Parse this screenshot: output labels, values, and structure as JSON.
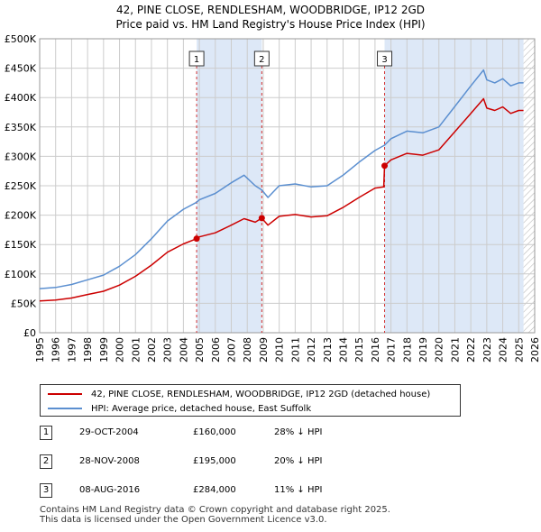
{
  "title_line1": "42, PINE CLOSE, RENDLESHAM, WOODBRIDGE, IP12 2GD",
  "title_line2": "Price paid vs. HM Land Registry's House Price Index (HPI)",
  "colors": {
    "property": "#cc0000",
    "hpi": "#5b8fd0",
    "shade": "#dde8f7",
    "grid": "#cccccc"
  },
  "legend": {
    "property_label": "42, PINE CLOSE, RENDLESHAM, WOODBRIDGE, IP12 2GD (detached house)",
    "hpi_label": "HPI: Average price, detached house, East Suffolk"
  },
  "sales": [
    {
      "num": "1",
      "date": "29-OCT-2004",
      "price": "£160,000",
      "hpi_diff": "28% ↓ HPI"
    },
    {
      "num": "2",
      "date": "28-NOV-2008",
      "price": "£195,000",
      "hpi_diff": "20% ↓ HPI"
    },
    {
      "num": "3",
      "date": "08-AUG-2016",
      "price": "£284,000",
      "hpi_diff": "11% ↓ HPI"
    }
  ],
  "footer_line1": "Contains HM Land Registry data © Crown copyright and database right 2025.",
  "footer_line2": "This data is licensed under the Open Government Licence v3.0.",
  "chart_data": {
    "type": "line",
    "title": "42, PINE CLOSE, RENDLESHAM, WOODBRIDGE, IP12 2GD — Price paid vs. HM Land Registry's House Price Index (HPI)",
    "xlim": [
      1995,
      2026
    ],
    "ylim": [
      0,
      500000
    ],
    "yticks": [
      0,
      50000,
      100000,
      150000,
      200000,
      250000,
      300000,
      350000,
      400000,
      450000,
      500000
    ],
    "ytick_labels": [
      "£0",
      "£50K",
      "£100K",
      "£150K",
      "£200K",
      "£250K",
      "£300K",
      "£350K",
      "£400K",
      "£450K",
      "£500K"
    ],
    "xticks": [
      1995,
      1996,
      1997,
      1998,
      1999,
      2000,
      2001,
      2002,
      2003,
      2004,
      2005,
      2006,
      2007,
      2008,
      2009,
      2010,
      2011,
      2012,
      2013,
      2014,
      2015,
      2016,
      2017,
      2018,
      2019,
      2020,
      2021,
      2022,
      2023,
      2024,
      2025,
      2026
    ],
    "grid": true,
    "sale_markers": [
      {
        "label": "1",
        "x": 2004.83,
        "y": 160000
      },
      {
        "label": "2",
        "x": 2008.91,
        "y": 195000
      },
      {
        "label": "3",
        "x": 2016.6,
        "y": 284000
      }
    ],
    "shaded_ranges": [
      [
        2004.83,
        2008.91
      ],
      [
        2016.6,
        2025.3
      ]
    ],
    "hatched_from": 2025.3,
    "series": [
      {
        "name": "HPI: Average price, detached house, East Suffolk",
        "x": [
          1995,
          1996,
          1997,
          1998,
          1999,
          2000,
          2001,
          2002,
          2003,
          2004,
          2004.83,
          2005,
          2006,
          2007,
          2007.8,
          2008.5,
          2008.91,
          2009.3,
          2010,
          2011,
          2012,
          2013,
          2014,
          2015,
          2016,
          2016.6,
          2017,
          2018,
          2019,
          2020,
          2021,
          2022,
          2022.8,
          2023,
          2023.5,
          2024,
          2024.5,
          2025,
          2025.3
        ],
        "y": [
          75000,
          77000,
          82000,
          90000,
          98000,
          113000,
          133000,
          160000,
          190000,
          210000,
          222000,
          226000,
          237000,
          255000,
          268000,
          250000,
          243000,
          230000,
          250000,
          253000,
          248000,
          250000,
          268000,
          290000,
          310000,
          319000,
          330000,
          343000,
          340000,
          350000,
          385000,
          420000,
          447000,
          430000,
          425000,
          432000,
          420000,
          425000,
          425000
        ]
      },
      {
        "name": "42, PINE CLOSE, RENDLESHAM, WOODBRIDGE, IP12 2GD (detached house)",
        "x": [
          1995,
          1996,
          1997,
          1998,
          1999,
          2000,
          2001,
          2002,
          2003,
          2004,
          2004.83,
          2005,
          2006,
          2007,
          2007.8,
          2008.5,
          2008.91,
          2009.3,
          2010,
          2011,
          2012,
          2013,
          2014,
          2015,
          2016,
          2016.55,
          2016.6,
          2017,
          2018,
          2019,
          2020,
          2021,
          2022,
          2022.8,
          2023,
          2023.5,
          2024,
          2024.5,
          2025,
          2025.3
        ],
        "y": [
          54000,
          55500,
          59000,
          65000,
          70500,
          81000,
          96000,
          115000,
          137000,
          151000,
          160000,
          163000,
          170000,
          183000,
          194000,
          188000,
          195000,
          183000,
          198000,
          201000,
          197000,
          199000,
          213000,
          230000,
          246000,
          248000,
          284000,
          294000,
          305000,
          302000,
          311000,
          342000,
          373000,
          398000,
          382000,
          378000,
          384000,
          373000,
          378000,
          378000
        ]
      }
    ]
  }
}
